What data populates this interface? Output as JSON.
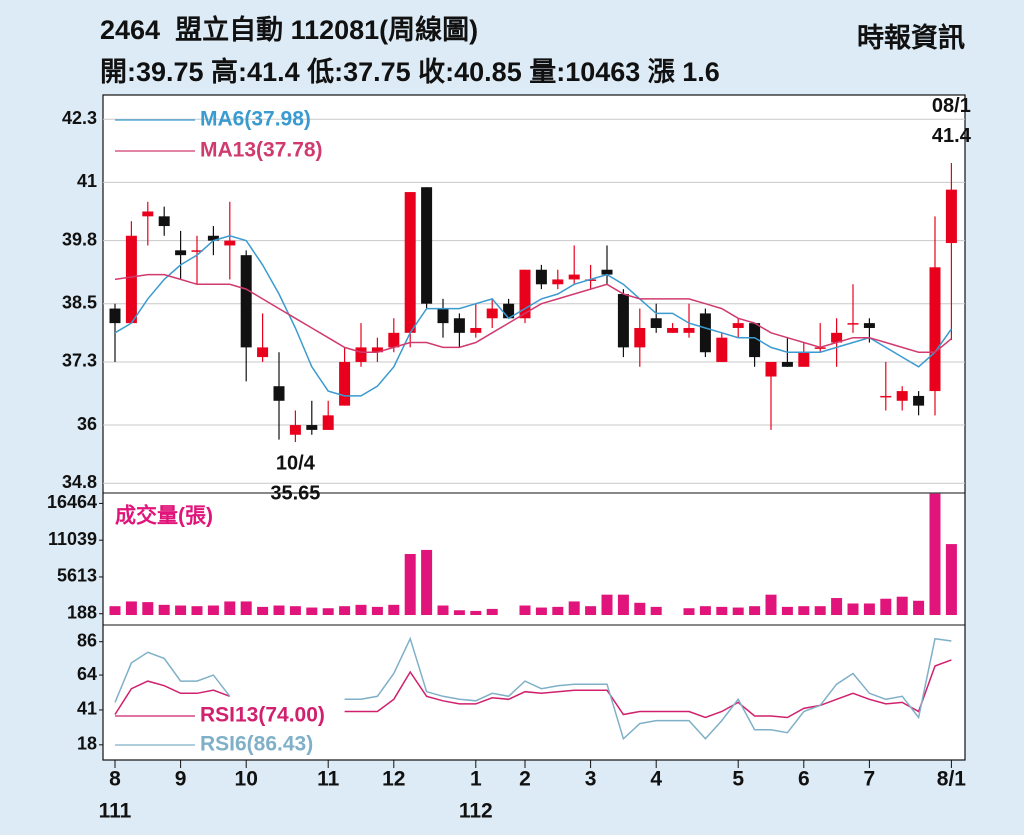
{
  "header": {
    "title": "2464  盟立自動 112081(周線圖)",
    "source": "時報資訊",
    "quote": "開:39.75 高:41.4 低:37.75 收:40.85 量:10463 漲 1.6"
  },
  "chart_data": [
    {
      "type": "candlestick",
      "categories": [
        "8",
        null,
        null,
        null,
        "9",
        null,
        null,
        null,
        "10",
        null,
        null,
        null,
        null,
        "11",
        null,
        null,
        null,
        "12",
        null,
        null,
        null,
        null,
        "1",
        null,
        null,
        "2",
        null,
        null,
        null,
        "3",
        null,
        null,
        null,
        "4",
        null,
        null,
        null,
        null,
        "5",
        null,
        null,
        null,
        "6",
        null,
        null,
        null,
        "7",
        null,
        null,
        null,
        null,
        "8/1"
      ],
      "years": [
        "111",
        null,
        null,
        null,
        null,
        null,
        null,
        null,
        null,
        null,
        null,
        null,
        null,
        null,
        null,
        null,
        null,
        null,
        null,
        null,
        null,
        null,
        "112",
        null,
        null,
        null,
        null,
        null,
        null,
        null,
        null,
        null,
        null,
        null,
        null,
        null,
        null,
        null,
        null,
        null,
        null,
        null,
        null,
        null,
        null,
        null,
        null,
        null,
        null,
        null,
        null,
        null
      ],
      "open": [
        38.4,
        38.1,
        40.3,
        40.3,
        39.6,
        39.6,
        39.9,
        39.7,
        39.5,
        37.4,
        36.8,
        35.8,
        36.0,
        35.9,
        36.4,
        37.3,
        37.5,
        37.6,
        37.9,
        40.9,
        38.4,
        38.2,
        37.9,
        38.2,
        38.5,
        38.2,
        39.2,
        38.9,
        39.0,
        39.0,
        39.2,
        38.7,
        37.6,
        38.2,
        37.9,
        37.9,
        38.3,
        37.3,
        38.0,
        38.1,
        37.0,
        37.3,
        37.2,
        37.6,
        37.7,
        38.1,
        38.1,
        36.6,
        36.5,
        36.6,
        36.7,
        39.75
      ],
      "high": [
        38.5,
        40.2,
        40.6,
        40.5,
        40.0,
        39.9,
        40.1,
        40.6,
        39.6,
        38.3,
        37.5,
        36.3,
        36.5,
        36.5,
        37.6,
        38.1,
        37.8,
        38.2,
        40.8,
        40.9,
        38.6,
        38.3,
        38.5,
        38.6,
        38.6,
        39.2,
        39.3,
        39.2,
        39.7,
        39.3,
        39.7,
        38.8,
        38.4,
        38.5,
        38.1,
        38.5,
        38.4,
        37.9,
        38.2,
        38.1,
        37.3,
        37.8,
        37.7,
        38.1,
        38.2,
        38.9,
        38.2,
        37.3,
        36.8,
        36.7,
        40.3,
        41.4
      ],
      "low": [
        37.3,
        38.1,
        39.7,
        39.9,
        39.0,
        38.9,
        39.5,
        39.0,
        36.9,
        37.3,
        35.7,
        35.65,
        35.8,
        35.9,
        36.4,
        37.2,
        37.3,
        37.5,
        37.6,
        38.4,
        37.8,
        37.6,
        37.8,
        38.0,
        38.2,
        38.1,
        38.8,
        38.8,
        38.9,
        38.8,
        38.9,
        37.4,
        37.2,
        37.9,
        37.9,
        37.8,
        37.4,
        37.3,
        37.8,
        37.2,
        35.9,
        37.2,
        37.2,
        37.5,
        37.2,
        37.9,
        37.7,
        36.3,
        36.3,
        36.2,
        36.2,
        37.75
      ],
      "close": [
        38.1,
        39.9,
        40.4,
        40.1,
        39.5,
        39.6,
        39.8,
        39.8,
        37.6,
        37.6,
        36.5,
        36.0,
        35.9,
        36.2,
        37.3,
        37.6,
        37.6,
        37.9,
        40.8,
        38.5,
        38.1,
        37.9,
        38.0,
        38.4,
        38.2,
        39.2,
        38.9,
        39.0,
        39.1,
        39.0,
        39.1,
        37.6,
        38.0,
        38.0,
        38.0,
        38.0,
        37.5,
        37.8,
        38.1,
        37.4,
        37.3,
        37.2,
        37.5,
        37.6,
        37.9,
        38.1,
        38.0,
        36.6,
        36.7,
        36.4,
        39.25,
        40.85
      ],
      "up_color": "#e8001c",
      "down_color": "#111111",
      "series": [
        {
          "name": "MA6(37.98)",
          "color": "#3a9bd0",
          "values": [
            37.9,
            38.1,
            38.6,
            39.0,
            39.3,
            39.5,
            39.8,
            39.9,
            39.8,
            39.3,
            38.7,
            38.0,
            37.2,
            36.7,
            36.6,
            36.6,
            36.8,
            37.2,
            37.9,
            38.4,
            38.4,
            38.4,
            38.5,
            38.6,
            38.2,
            38.4,
            38.6,
            38.7,
            38.9,
            39.0,
            39.1,
            38.9,
            38.6,
            38.3,
            38.3,
            38.1,
            38.0,
            37.9,
            37.8,
            37.8,
            37.6,
            37.5,
            37.5,
            37.5,
            37.6,
            37.7,
            37.8,
            37.6,
            37.4,
            37.2,
            37.5,
            37.98
          ]
        },
        {
          "name": "MA13(37.78)",
          "color": "#d03a6e",
          "values": [
            39.0,
            39.05,
            39.1,
            39.1,
            39.0,
            38.9,
            38.9,
            38.9,
            38.8,
            38.6,
            38.4,
            38.2,
            38.0,
            37.8,
            37.6,
            37.5,
            37.5,
            37.6,
            37.7,
            37.7,
            37.6,
            37.6,
            37.7,
            37.9,
            38.1,
            38.3,
            38.5,
            38.6,
            38.7,
            38.8,
            38.9,
            38.7,
            38.6,
            38.6,
            38.6,
            38.6,
            38.5,
            38.4,
            38.2,
            38.1,
            37.9,
            37.8,
            37.7,
            37.6,
            37.7,
            37.8,
            37.8,
            37.7,
            37.6,
            37.5,
            37.5,
            37.78
          ]
        }
      ],
      "ylim": [
        34.6,
        42.8
      ],
      "yticks": [
        42.3,
        41.0,
        39.8,
        38.5,
        37.3,
        36.0,
        34.8
      ],
      "grid": true,
      "annotations": [
        {
          "index": 11,
          "label": "10/4",
          "value": 35.65
        },
        {
          "index": 51,
          "label": "08/1",
          "value": 41.4
        }
      ]
    },
    {
      "type": "bar",
      "title": "成交量(張)",
      "color": "#e0147a",
      "values": [
        1300,
        2000,
        1900,
        1500,
        1400,
        1300,
        1400,
        2000,
        2000,
        1200,
        1400,
        1300,
        1100,
        1000,
        1300,
        1500,
        1200,
        1500,
        9000,
        9600,
        1400,
        700,
        600,
        900,
        0,
        1400,
        1100,
        1200,
        2000,
        1300,
        3000,
        3000,
        1800,
        1200,
        0,
        1000,
        1300,
        1200,
        1100,
        1300,
        3000,
        1200,
        1300,
        1300,
        2500,
        1700,
        1700,
        2400,
        2700,
        2100,
        17900,
        10463
      ],
      "ylim": [
        0,
        18000
      ],
      "yticks": [
        16464,
        11039,
        5613,
        188
      ]
    },
    {
      "type": "line",
      "series": [
        {
          "name": "RSI13(74.00)",
          "color": "#d0206e",
          "values": [
            38,
            55,
            60,
            57,
            52,
            52,
            54,
            50,
            null,
            null,
            null,
            null,
            null,
            null,
            40,
            40,
            40,
            48,
            66,
            50,
            47,
            45,
            45,
            49,
            48,
            53,
            52,
            53,
            54,
            54,
            54,
            38,
            40,
            40,
            40,
            40,
            36,
            40,
            46,
            37,
            37,
            36,
            42,
            44,
            48,
            52,
            48,
            45,
            46,
            40,
            70,
            74.0
          ]
        },
        {
          "name": "RSI6(86.43)",
          "color": "#7fb0c8",
          "values": [
            46,
            72,
            79,
            75,
            60,
            60,
            64,
            50,
            null,
            null,
            null,
            null,
            null,
            null,
            48,
            48,
            50,
            65,
            88,
            53,
            50,
            48,
            47,
            52,
            50,
            60,
            55,
            57,
            58,
            58,
            58,
            22,
            32,
            34,
            34,
            34,
            22,
            34,
            48,
            28,
            28,
            26,
            40,
            44,
            58,
            65,
            52,
            48,
            50,
            36,
            88,
            86.43
          ]
        }
      ],
      "ylim": [
        8,
        97
      ],
      "yticks": [
        86,
        64,
        41,
        18
      ]
    }
  ]
}
